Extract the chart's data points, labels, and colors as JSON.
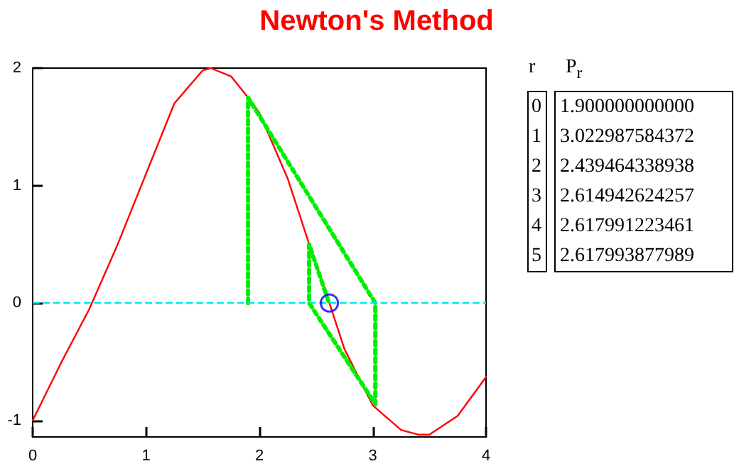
{
  "chart_data": {
    "type": "line",
    "title": "Newton's Method",
    "xlim": [
      0,
      4
    ],
    "ylim": [
      -1.14,
      2
    ],
    "xticks": [
      0,
      1,
      2,
      3,
      4
    ],
    "yticks": [
      -1,
      0,
      1,
      2
    ],
    "grid": false,
    "series": [
      {
        "type": "line",
        "color": "#ff0000",
        "marker": "none",
        "line_style": "solid",
        "x": [
          0,
          0.25,
          0.5,
          0.75,
          1.0,
          1.25,
          1.5,
          1.57,
          1.75,
          1.9,
          2.0,
          2.25,
          2.44,
          2.618,
          2.75,
          3.0,
          3.25,
          3.4,
          3.5,
          3.75,
          4.0
        ],
        "values": [
          -1,
          -0.51,
          -0.05,
          0.5,
          1.1,
          1.7,
          1.98,
          2,
          1.93,
          1.75,
          1.62,
          1.06,
          0.5,
          0,
          -0.39,
          -0.87,
          -1.08,
          -1.12,
          -1.12,
          -0.96,
          -0.63
        ]
      },
      {
        "type": "line",
        "color": "#00ee00",
        "marker": "none",
        "line_style": "dotted",
        "x": [
          1.9,
          1.9,
          3.023,
          3.023,
          2.439,
          2.439,
          2.615,
          2.615
        ],
        "values": [
          0,
          1.75,
          0,
          -0.86,
          0,
          0.5,
          0,
          0.01
        ]
      },
      {
        "type": "scatter",
        "color": "#0000ff",
        "marker": "circle",
        "x": [
          2.618
        ],
        "values": [
          0
        ]
      }
    ],
    "ref_lines": [
      {
        "axis": "y",
        "value": 0,
        "color": "#00e5e5",
        "line_style": "dashed"
      }
    ],
    "annotations": [
      "r",
      "P$_{r}$",
      "0",
      "1.900000000000",
      "1",
      "3.022987584372",
      "2",
      "2.439464338938",
      "3",
      "2.614942624257",
      "4",
      "2.617991223461",
      "5",
      "2.617993877989"
    ]
  }
}
